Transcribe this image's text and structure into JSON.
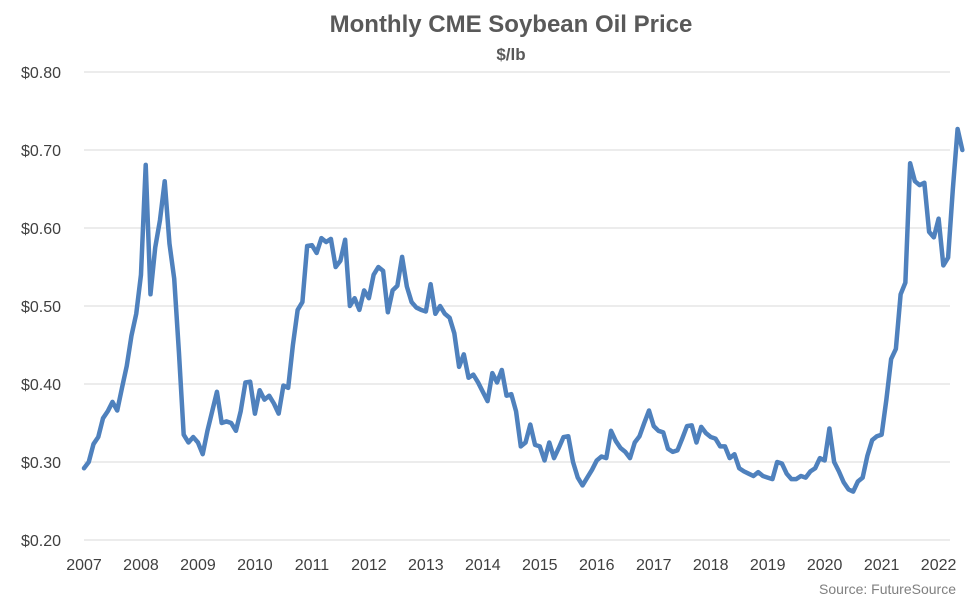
{
  "chart_data": {
    "type": "line",
    "title": "Monthly CME Soybean Oil Price",
    "subtitle": "$/lb",
    "source": "Source: FutureSource",
    "ylim": [
      0.2,
      0.8
    ],
    "xlim": [
      2007,
      2022.2
    ],
    "grid": true,
    "y_ticks": [
      {
        "value": 0.2,
        "label": "$0.20"
      },
      {
        "value": 0.3,
        "label": "$0.30"
      },
      {
        "value": 0.4,
        "label": "$0.40"
      },
      {
        "value": 0.5,
        "label": "$0.50"
      },
      {
        "value": 0.6,
        "label": "$0.60"
      },
      {
        "value": 0.7,
        "label": "$0.70"
      },
      {
        "value": 0.8,
        "label": "$0.80"
      }
    ],
    "x_ticks": [
      {
        "value": 2007,
        "label": "2007"
      },
      {
        "value": 2008,
        "label": "2008"
      },
      {
        "value": 2009,
        "label": "2009"
      },
      {
        "value": 2010,
        "label": "2010"
      },
      {
        "value": 2011,
        "label": "2011"
      },
      {
        "value": 2012,
        "label": "2012"
      },
      {
        "value": 2013,
        "label": "2013"
      },
      {
        "value": 2014,
        "label": "2014"
      },
      {
        "value": 2015,
        "label": "2015"
      },
      {
        "value": 2016,
        "label": "2016"
      },
      {
        "value": 2017,
        "label": "2017"
      },
      {
        "value": 2018,
        "label": "2018"
      },
      {
        "value": 2019,
        "label": "2019"
      },
      {
        "value": 2020,
        "label": "2020"
      },
      {
        "value": 2021,
        "label": "2021"
      },
      {
        "value": 2022,
        "label": "2022"
      }
    ],
    "series": [
      {
        "color": "#4f81bd",
        "x_start": 2007.0,
        "x_step_months": 1,
        "values": [
          0.292,
          0.3,
          0.323,
          0.332,
          0.356,
          0.365,
          0.377,
          0.366,
          0.395,
          0.423,
          0.462,
          0.49,
          0.54,
          0.681,
          0.515,
          0.575,
          0.61,
          0.66,
          0.58,
          0.535,
          0.44,
          0.335,
          0.325,
          0.332,
          0.325,
          0.31,
          0.34,
          0.365,
          0.39,
          0.35,
          0.352,
          0.35,
          0.34,
          0.365,
          0.402,
          0.403,
          0.362,
          0.392,
          0.38,
          0.385,
          0.375,
          0.362,
          0.398,
          0.395,
          0.45,
          0.495,
          0.505,
          0.577,
          0.578,
          0.568,
          0.587,
          0.582,
          0.586,
          0.55,
          0.558,
          0.585,
          0.5,
          0.51,
          0.495,
          0.52,
          0.51,
          0.54,
          0.55,
          0.545,
          0.492,
          0.52,
          0.526,
          0.563,
          0.525,
          0.505,
          0.498,
          0.495,
          0.493,
          0.528,
          0.49,
          0.5,
          0.49,
          0.485,
          0.465,
          0.422,
          0.438,
          0.408,
          0.412,
          0.402,
          0.39,
          0.378,
          0.414,
          0.402,
          0.418,
          0.385,
          0.387,
          0.365,
          0.32,
          0.325,
          0.348,
          0.322,
          0.32,
          0.302,
          0.325,
          0.305,
          0.318,
          0.332,
          0.333,
          0.3,
          0.28,
          0.27,
          0.28,
          0.29,
          0.302,
          0.307,
          0.305,
          0.34,
          0.327,
          0.318,
          0.313,
          0.305,
          0.325,
          0.333,
          0.35,
          0.366,
          0.346,
          0.34,
          0.338,
          0.317,
          0.313,
          0.315,
          0.33,
          0.346,
          0.347,
          0.325,
          0.345,
          0.337,
          0.332,
          0.33,
          0.32,
          0.32,
          0.305,
          0.31,
          0.292,
          0.288,
          0.285,
          0.282,
          0.287,
          0.282,
          0.28,
          0.278,
          0.3,
          0.298,
          0.285,
          0.278,
          0.278,
          0.282,
          0.28,
          0.288,
          0.292,
          0.305,
          0.302,
          0.343,
          0.3,
          0.288,
          0.274,
          0.265,
          0.262,
          0.275,
          0.28,
          0.308,
          0.328,
          0.333,
          0.335,
          0.38,
          0.432,
          0.445,
          0.515,
          0.53,
          0.683,
          0.66,
          0.655,
          0.658,
          0.595,
          0.588,
          0.612,
          0.552,
          0.562,
          0.65,
          0.727,
          0.7
        ]
      }
    ]
  }
}
